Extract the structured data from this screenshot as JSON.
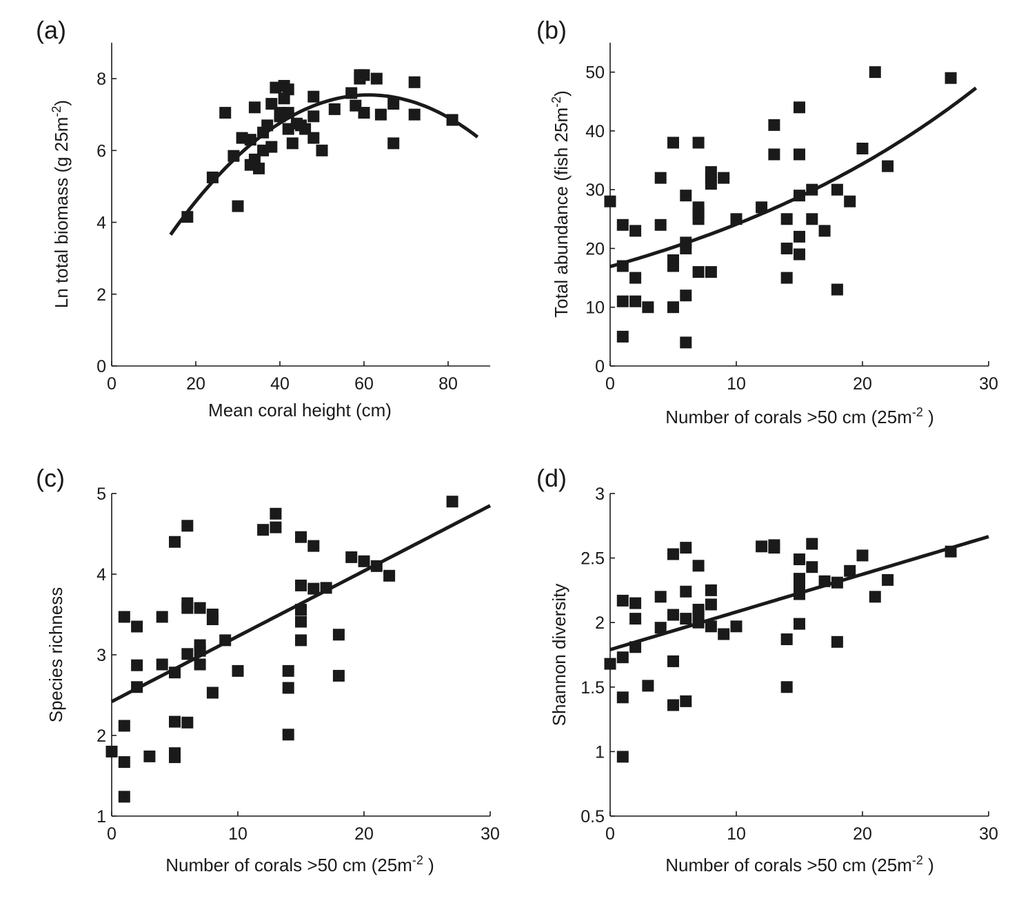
{
  "figure": {
    "panels": [
      "a",
      "b",
      "c",
      "d"
    ]
  },
  "chart_data": [
    {
      "panel_label": "(a)",
      "type": "scatter",
      "xlabel": "Mean coral height (cm)",
      "ylabel": "Ln total biomass (g 25m-2)",
      "ylabel_parts": {
        "pre": "Ln total biomass (g 25m",
        "sup": "-2",
        "post": ")"
      },
      "xlim": [
        0,
        90
      ],
      "ylim": [
        0,
        9
      ],
      "xticks": [
        0,
        20,
        40,
        60,
        80
      ],
      "yticks": [
        0,
        2,
        4,
        6,
        8
      ],
      "grid": false,
      "marker": "square",
      "points": [
        [
          18,
          4.15
        ],
        [
          24,
          5.25
        ],
        [
          27,
          7.05
        ],
        [
          29,
          5.85
        ],
        [
          30,
          4.45
        ],
        [
          31,
          6.35
        ],
        [
          33,
          6.3
        ],
        [
          33,
          5.6
        ],
        [
          34,
          7.2
        ],
        [
          34,
          5.75
        ],
        [
          35,
          5.5
        ],
        [
          36,
          6.5
        ],
        [
          36,
          6.0
        ],
        [
          37,
          6.7
        ],
        [
          38,
          7.3
        ],
        [
          38,
          6.1
        ],
        [
          39,
          7.75
        ],
        [
          40,
          7.05
        ],
        [
          40,
          6.95
        ],
        [
          41,
          7.8
        ],
        [
          41,
          7.45
        ],
        [
          42,
          7.05
        ],
        [
          42,
          7.7
        ],
        [
          42,
          6.6
        ],
        [
          43,
          6.2
        ],
        [
          44,
          6.75
        ],
        [
          45,
          6.7
        ],
        [
          46,
          6.6
        ],
        [
          48,
          6.35
        ],
        [
          48,
          7.5
        ],
        [
          48,
          6.95
        ],
        [
          50,
          6.0
        ],
        [
          53,
          7.15
        ],
        [
          57,
          7.6
        ],
        [
          58,
          7.25
        ],
        [
          59,
          8.0
        ],
        [
          59,
          8.1
        ],
        [
          60,
          8.1
        ],
        [
          60,
          7.05
        ],
        [
          63,
          8.0
        ],
        [
          64,
          7.0
        ],
        [
          67,
          6.2
        ],
        [
          67,
          7.3
        ],
        [
          72,
          7.0
        ],
        [
          72,
          7.9
        ],
        [
          81,
          6.85
        ]
      ],
      "fit": {
        "type": "quadratic",
        "x_range": [
          14,
          87
        ],
        "coefficients": [
          1.002,
          0.2141,
          -0.001751
        ]
      }
    },
    {
      "panel_label": "(b)",
      "type": "scatter",
      "xlabel": "Number of corals >50 cm (25m-2 )",
      "xlabel_parts": {
        "pre": "Number of corals >50 cm (25m",
        "sup": "-2",
        "post": " )"
      },
      "ylabel": "Total abundance (fish 25m-2)",
      "ylabel_parts": {
        "pre": "Total abundance (fish 25m",
        "sup": "-2",
        "post": ")"
      },
      "xlim": [
        0,
        30
      ],
      "ylim": [
        0,
        55
      ],
      "xticks": [
        0,
        10,
        20,
        30
      ],
      "yticks": [
        0,
        10,
        20,
        30,
        40,
        50
      ],
      "grid": false,
      "marker": "square",
      "points": [
        [
          0,
          28
        ],
        [
          1,
          24
        ],
        [
          1,
          17
        ],
        [
          1,
          11
        ],
        [
          1,
          5
        ],
        [
          2,
          23
        ],
        [
          2,
          15
        ],
        [
          2,
          11
        ],
        [
          3,
          10
        ],
        [
          4,
          32
        ],
        [
          4,
          24
        ],
        [
          5,
          38
        ],
        [
          5,
          18
        ],
        [
          5,
          17
        ],
        [
          5,
          10
        ],
        [
          6,
          29
        ],
        [
          6,
          21
        ],
        [
          6,
          20
        ],
        [
          6,
          12
        ],
        [
          6,
          4
        ],
        [
          7,
          38
        ],
        [
          7,
          27
        ],
        [
          7,
          26
        ],
        [
          7,
          25
        ],
        [
          7,
          16
        ],
        [
          8,
          33
        ],
        [
          8,
          32
        ],
        [
          8,
          31
        ],
        [
          8,
          16
        ],
        [
          9,
          32
        ],
        [
          10,
          25
        ],
        [
          12,
          27
        ],
        [
          13,
          41
        ],
        [
          13,
          36
        ],
        [
          14,
          25
        ],
        [
          14,
          20
        ],
        [
          14,
          15
        ],
        [
          15,
          44
        ],
        [
          15,
          36
        ],
        [
          15,
          29
        ],
        [
          15,
          22
        ],
        [
          15,
          19
        ],
        [
          16,
          30
        ],
        [
          16,
          25
        ],
        [
          17,
          23
        ],
        [
          18,
          30
        ],
        [
          18,
          13
        ],
        [
          19,
          28
        ],
        [
          20,
          37
        ],
        [
          21,
          50
        ],
        [
          22,
          34
        ],
        [
          27,
          49
        ]
      ],
      "fit": {
        "type": "exponential",
        "x_range": [
          0,
          29
        ],
        "coefficients": [
          16.92,
          0.03545
        ]
      }
    },
    {
      "panel_label": "(c)",
      "type": "scatter",
      "xlabel": "Number of corals >50 cm (25m-2 )",
      "xlabel_parts": {
        "pre": "Number of corals >50 cm (25m",
        "sup": "-2",
        "post": " )"
      },
      "ylabel": "Species richness",
      "xlim": [
        0,
        30
      ],
      "ylim": [
        1,
        5
      ],
      "xticks": [
        0,
        10,
        20,
        30
      ],
      "yticks": [
        1,
        2,
        3,
        4,
        5
      ],
      "grid": false,
      "marker": "square",
      "points": [
        [
          0,
          1.8
        ],
        [
          1,
          3.47
        ],
        [
          1,
          2.12
        ],
        [
          1,
          1.67
        ],
        [
          1,
          1.24
        ],
        [
          2,
          3.35
        ],
        [
          2,
          2.87
        ],
        [
          2,
          2.6
        ],
        [
          3,
          1.74
        ],
        [
          4,
          3.47
        ],
        [
          4,
          2.88
        ],
        [
          5,
          4.4
        ],
        [
          5,
          2.78
        ],
        [
          5,
          2.17
        ],
        [
          5,
          1.78
        ],
        [
          5,
          1.73
        ],
        [
          6,
          4.6
        ],
        [
          6,
          3.64
        ],
        [
          6,
          3.58
        ],
        [
          6,
          3.01
        ],
        [
          6,
          2.16
        ],
        [
          7,
          3.58
        ],
        [
          7,
          3.12
        ],
        [
          7,
          3.05
        ],
        [
          7,
          2.88
        ],
        [
          8,
          3.5
        ],
        [
          8,
          3.44
        ],
        [
          8,
          2.53
        ],
        [
          9,
          3.18
        ],
        [
          10,
          2.8
        ],
        [
          12,
          4.55
        ],
        [
          13,
          4.75
        ],
        [
          13,
          4.58
        ],
        [
          14,
          2.8
        ],
        [
          14,
          2.59
        ],
        [
          14,
          2.01
        ],
        [
          15,
          4.46
        ],
        [
          15,
          3.86
        ],
        [
          15,
          3.56
        ],
        [
          15,
          3.41
        ],
        [
          15,
          3.18
        ],
        [
          16,
          4.35
        ],
        [
          16,
          3.82
        ],
        [
          17,
          3.83
        ],
        [
          18,
          3.25
        ],
        [
          18,
          2.74
        ],
        [
          19,
          4.21
        ],
        [
          20,
          4.16
        ],
        [
          21,
          4.1
        ],
        [
          22,
          3.98
        ],
        [
          27,
          4.9
        ]
      ],
      "fit": {
        "type": "linear",
        "x_range": [
          0,
          30
        ],
        "coefficients": [
          2.42,
          0.081
        ]
      }
    },
    {
      "panel_label": "(d)",
      "type": "scatter",
      "xlabel": "Number of corals >50 cm (25m-2 )",
      "xlabel_parts": {
        "pre": "Number of corals >50 cm (25m",
        "sup": "-2",
        "post": " )"
      },
      "ylabel": "Shannon diversity",
      "xlim": [
        0,
        30
      ],
      "ylim": [
        0.5,
        3
      ],
      "xticks": [
        0,
        10,
        20,
        30
      ],
      "yticks": [
        0.5,
        1,
        1.5,
        2,
        2.5,
        3
      ],
      "grid": false,
      "marker": "square",
      "points": [
        [
          0,
          1.68
        ],
        [
          1,
          2.17
        ],
        [
          1,
          1.73
        ],
        [
          1,
          1.42
        ],
        [
          1,
          0.96
        ],
        [
          2,
          2.15
        ],
        [
          2,
          2.03
        ],
        [
          2,
          1.81
        ],
        [
          3,
          1.51
        ],
        [
          4,
          2.2
        ],
        [
          4,
          1.96
        ],
        [
          5,
          2.53
        ],
        [
          5,
          2.06
        ],
        [
          5,
          1.7
        ],
        [
          5,
          1.36
        ],
        [
          6,
          2.58
        ],
        [
          6,
          2.24
        ],
        [
          6,
          2.03
        ],
        [
          6,
          1.39
        ],
        [
          7,
          2.44
        ],
        [
          7,
          2.1
        ],
        [
          7,
          2.05
        ],
        [
          7,
          2.0
        ],
        [
          8,
          2.25
        ],
        [
          8,
          2.14
        ],
        [
          8,
          1.97
        ],
        [
          9,
          1.91
        ],
        [
          10,
          1.97
        ],
        [
          12,
          2.59
        ],
        [
          13,
          2.6
        ],
        [
          13,
          2.58
        ],
        [
          14,
          1.87
        ],
        [
          14,
          1.5
        ],
        [
          15,
          2.49
        ],
        [
          15,
          2.34
        ],
        [
          15,
          2.28
        ],
        [
          15,
          2.22
        ],
        [
          15,
          1.99
        ],
        [
          16,
          2.61
        ],
        [
          16,
          2.43
        ],
        [
          17,
          2.32
        ],
        [
          18,
          2.31
        ],
        [
          18,
          1.85
        ],
        [
          19,
          2.4
        ],
        [
          20,
          2.52
        ],
        [
          21,
          2.2
        ],
        [
          22,
          2.33
        ],
        [
          27,
          2.55
        ]
      ],
      "fit": {
        "type": "linear",
        "x_range": [
          0,
          30
        ],
        "coefficients": [
          1.79,
          0.0292
        ]
      }
    }
  ]
}
